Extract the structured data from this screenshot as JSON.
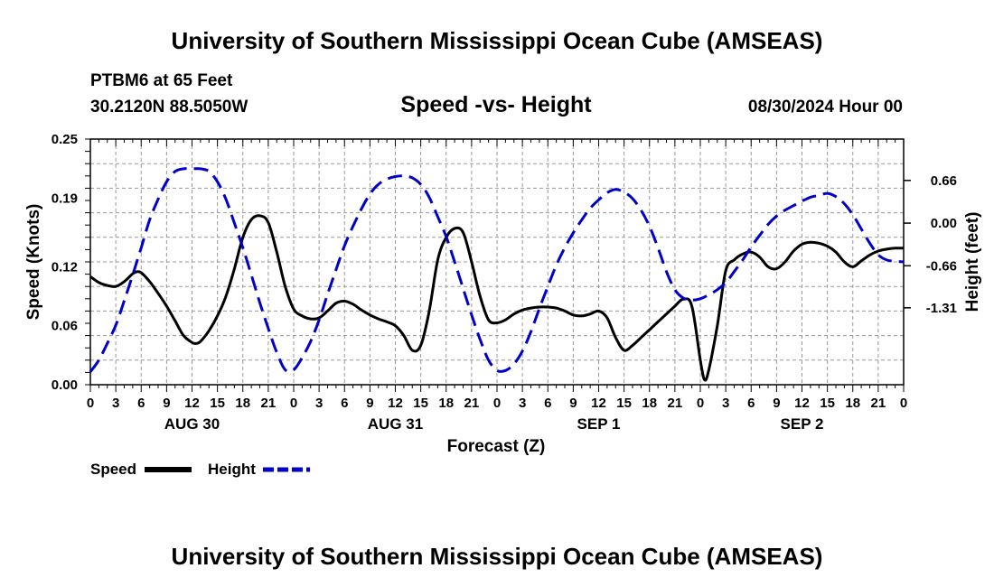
{
  "chart_data": {
    "type": "line",
    "title": "University of Southern Mississippi Ocean Cube (AMSEAS)",
    "footer_title": "University of Southern Mississippi Ocean Cube (AMSEAS)",
    "station": "PTBM6 at 65 Feet",
    "location": "30.2120N  88.5050W",
    "subtitle": "Speed -vs- Height",
    "datetime": "08/30/2024 Hour 00",
    "xlabel": "Forecast (Z)",
    "ylabel": "Speed (Knots)",
    "y2label": "Height (feet)",
    "xlim": [
      0,
      96
    ],
    "ylim": [
      0,
      0.25
    ],
    "y2lim": [
      -2.5,
      1.3
    ],
    "xticks": [
      0,
      3,
      6,
      9,
      12,
      15,
      18,
      21,
      24,
      27,
      30,
      33,
      36,
      39,
      42,
      45,
      48,
      51,
      54,
      57,
      60,
      63,
      66,
      69,
      72,
      75,
      78,
      81,
      84,
      87,
      90,
      93,
      96
    ],
    "xtick_labels": [
      "0",
      "3",
      "6",
      "9",
      "12",
      "15",
      "18",
      "21",
      "0",
      "3",
      "6",
      "9",
      "12",
      "15",
      "18",
      "21",
      "0",
      "3",
      "6",
      "9",
      "12",
      "15",
      "18",
      "21",
      "0",
      "3",
      "6",
      "9",
      "12",
      "15",
      "18",
      "21",
      "0"
    ],
    "day_labels": [
      {
        "label": "AUG 30",
        "x": 12
      },
      {
        "label": "AUG 31",
        "x": 36
      },
      {
        "label": "SEP 1",
        "x": 60
      },
      {
        "label": "SEP 2",
        "x": 84
      }
    ],
    "yticks": [
      0.0,
      0.06,
      0.12,
      0.19,
      0.25
    ],
    "ytick_labels": [
      "0.00",
      "0.06",
      "0.12",
      "0.19",
      "0.25"
    ],
    "y2ticks": [
      0.66,
      0.0,
      -0.66,
      -1.31
    ],
    "y2tick_labels": [
      "0.66",
      "0.00",
      "-0.66",
      "-1.31"
    ],
    "grid": true,
    "series": [
      {
        "name": "Speed",
        "axis": "left",
        "color": "#000000",
        "style": "solid",
        "x": [
          0,
          1,
          2,
          3,
          4,
          5,
          5.5,
          6,
          7,
          8,
          9,
          10,
          11,
          12,
          12.5,
          13,
          14,
          15,
          16,
          17,
          18,
          19,
          20,
          21,
          22,
          23,
          24,
          25,
          26,
          27,
          28,
          29,
          30,
          31,
          32,
          33,
          34,
          35,
          36,
          37,
          38,
          39,
          40,
          41,
          42,
          43,
          44,
          45,
          46,
          47,
          48,
          49,
          50,
          51,
          52,
          53,
          54,
          55,
          56,
          57,
          58,
          59,
          60,
          61,
          62,
          63,
          64,
          65,
          66,
          67,
          68,
          69,
          70,
          71,
          72,
          72.5,
          73,
          74,
          75,
          76,
          77,
          78,
          79,
          80,
          81,
          82,
          83,
          84,
          85,
          86,
          87,
          88,
          89,
          90,
          91,
          92,
          93,
          94,
          95,
          96
        ],
        "y": [
          0.11,
          0.104,
          0.101,
          0.1,
          0.105,
          0.113,
          0.115,
          0.114,
          0.105,
          0.093,
          0.08,
          0.065,
          0.05,
          0.043,
          0.042,
          0.044,
          0.055,
          0.07,
          0.09,
          0.118,
          0.15,
          0.168,
          0.172,
          0.165,
          0.135,
          0.1,
          0.077,
          0.07,
          0.067,
          0.068,
          0.075,
          0.083,
          0.085,
          0.082,
          0.076,
          0.071,
          0.067,
          0.064,
          0.06,
          0.05,
          0.035,
          0.04,
          0.075,
          0.127,
          0.15,
          0.159,
          0.155,
          0.125,
          0.09,
          0.066,
          0.063,
          0.066,
          0.072,
          0.076,
          0.078,
          0.079,
          0.079,
          0.078,
          0.075,
          0.071,
          0.07,
          0.072,
          0.075,
          0.068,
          0.048,
          0.035,
          0.04,
          0.048,
          0.056,
          0.064,
          0.072,
          0.08,
          0.087,
          0.08,
          0.025,
          0.005,
          0.015,
          0.06,
          0.116,
          0.127,
          0.133,
          0.135,
          0.13,
          0.12,
          0.118,
          0.125,
          0.136,
          0.143,
          0.145,
          0.144,
          0.141,
          0.135,
          0.125,
          0.12,
          0.126,
          0.132,
          0.136,
          0.138,
          0.139,
          0.139
        ]
      },
      {
        "name": "Height",
        "axis": "right",
        "color": "#0000cc",
        "style": "dashed",
        "x": [
          0,
          1,
          2,
          3,
          4,
          5,
          6,
          7,
          8,
          9,
          10,
          11,
          12,
          13,
          14,
          15,
          16,
          17,
          18,
          19,
          20,
          21,
          22,
          23,
          24,
          25,
          26,
          27,
          28,
          29,
          30,
          31,
          32,
          33,
          34,
          35,
          36,
          37,
          38,
          39,
          40,
          41,
          42,
          43,
          44,
          45,
          46,
          47,
          48,
          49,
          50,
          51,
          52,
          53,
          54,
          55,
          56,
          57,
          58,
          59,
          60,
          61,
          62,
          63,
          64,
          65,
          66,
          67,
          68,
          69,
          70,
          71,
          72,
          73,
          74,
          75,
          76,
          77,
          78,
          79,
          80,
          81,
          82,
          83,
          84,
          85,
          86,
          87,
          88,
          89,
          90,
          91,
          92,
          93,
          94,
          95,
          96
        ],
        "y": [
          -2.3,
          -2.12,
          -1.86,
          -1.58,
          -1.2,
          -0.8,
          -0.38,
          0.05,
          0.37,
          0.64,
          0.8,
          0.84,
          0.84,
          0.84,
          0.8,
          0.64,
          0.37,
          0.0,
          -0.38,
          -0.8,
          -1.23,
          -1.63,
          -2.0,
          -2.27,
          -2.27,
          -2.08,
          -1.83,
          -1.5,
          -1.1,
          -0.72,
          -0.35,
          -0.05,
          0.22,
          0.45,
          0.6,
          0.68,
          0.72,
          0.73,
          0.7,
          0.6,
          0.4,
          0.1,
          -0.21,
          -0.6,
          -1.01,
          -1.42,
          -1.8,
          -2.12,
          -2.28,
          -2.28,
          -2.18,
          -1.98,
          -1.68,
          -1.32,
          -0.98,
          -0.65,
          -0.38,
          -0.15,
          0.05,
          0.23,
          0.36,
          0.47,
          0.52,
          0.48,
          0.38,
          0.2,
          -0.05,
          -0.38,
          -0.75,
          -1.03,
          -1.16,
          -1.19,
          -1.17,
          -1.11,
          -1.03,
          -0.92,
          -0.75,
          -0.57,
          -0.37,
          -0.19,
          -0.02,
          0.11,
          0.2,
          0.27,
          0.34,
          0.4,
          0.43,
          0.46,
          0.41,
          0.3,
          0.13,
          -0.09,
          -0.31,
          -0.49,
          -0.57,
          -0.59,
          -0.6
        ]
      }
    ],
    "legend": [
      {
        "label": "Speed",
        "color": "#000000",
        "style": "solid"
      },
      {
        "label": "Height",
        "color": "#0000cc",
        "style": "dashed"
      }
    ]
  }
}
